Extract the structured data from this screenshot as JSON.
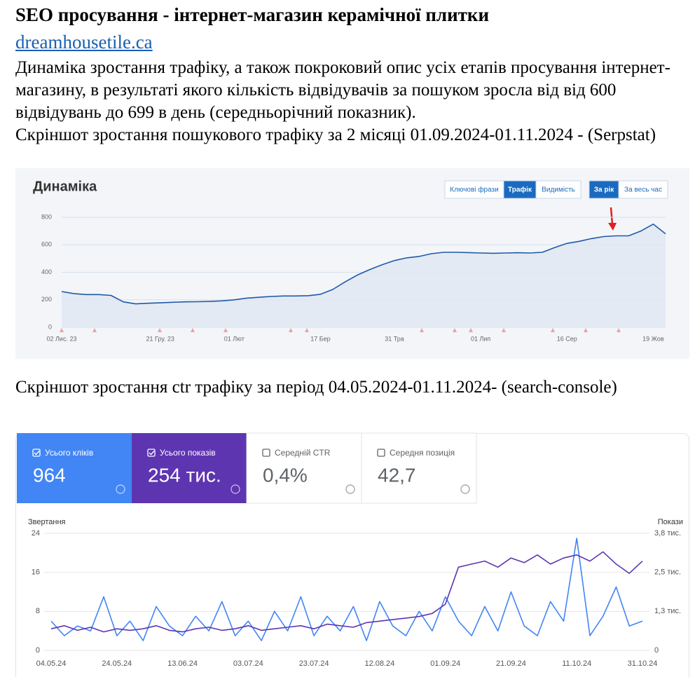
{
  "header": {
    "title": "SEO просування - інтернет-магазин керамічної плитки",
    "link": "dreamhousetile.ca"
  },
  "paragraphs": [
    "Динаміка зростання трафіку, а також покроковий опис усіх етапів просування інтернет-магазину, в результаті якого кількість відвідувачів за пошуком зросла від від 600 відвідувань до 699 в день (середньорічний показник).",
    "Скріншот зростання пошукового трафіку за 2 місяці 01.09.2024-01.11.2024 - (Serpstat)",
    "Скріншот зростання ctr трафіку за період 04.05.2024-01.11.2024- (search-console)"
  ],
  "chart_data": [
    {
      "type": "line",
      "title": "Динаміка",
      "buttons": [
        {
          "label": "Ключові фрази",
          "active": false
        },
        {
          "label": "Трафік",
          "active": true
        },
        {
          "label": "Видимість",
          "active": false
        },
        {
          "label": "За рік",
          "active": true
        },
        {
          "label": "За весь час",
          "active": false
        }
      ],
      "categories": [
        "02 Лис. 23",
        null,
        null,
        null,
        null,
        null,
        null,
        null,
        "21 Гру. 23",
        null,
        null,
        null,
        null,
        null,
        "01 Лют",
        null,
        null,
        null,
        null,
        null,
        null,
        "17 Бер",
        null,
        null,
        null,
        null,
        null,
        "31 Тра",
        null,
        null,
        null,
        null,
        null,
        null,
        "01 Лип",
        null,
        null,
        null,
        null,
        null,
        null,
        "16 Сер",
        null,
        null,
        null,
        null,
        null,
        null,
        "19 Жов",
        null
      ],
      "values": [
        260,
        245,
        238,
        238,
        232,
        185,
        170,
        175,
        178,
        182,
        185,
        186,
        188,
        192,
        200,
        212,
        218,
        224,
        228,
        228,
        230,
        240,
        275,
        330,
        380,
        420,
        455,
        485,
        505,
        515,
        535,
        545,
        545,
        543,
        540,
        538,
        540,
        542,
        540,
        545,
        580,
        610,
        625,
        645,
        660,
        665,
        665,
        700,
        750,
        680
      ],
      "color": "#1f5aa6",
      "ylim": [
        0,
        800
      ],
      "yticks": [
        0,
        200,
        400,
        600,
        800
      ],
      "grid": true
    },
    {
      "type": "line",
      "cards": [
        {
          "label": "Усього кліків",
          "value": "964",
          "checked": true,
          "color": "#4285f4"
        },
        {
          "label": "Усього показів",
          "value": "254 тис.",
          "checked": true,
          "color": "#5e35b1"
        },
        {
          "label": "Середній CTR",
          "value": "0,4%",
          "checked": false,
          "color": "#ffffff"
        },
        {
          "label": "Середня позиція",
          "value": "42,7",
          "checked": false,
          "color": "#ffffff"
        }
      ],
      "y_label": "Звертання",
      "y2_label": "Покази",
      "categories": [
        "04.05.24",
        null,
        null,
        null,
        null,
        "24.05.24",
        null,
        null,
        null,
        null,
        "13.06.24",
        null,
        null,
        null,
        null,
        "03.07.24",
        null,
        null,
        null,
        null,
        "23.07.24",
        null,
        null,
        null,
        null,
        "12.08.24",
        null,
        null,
        null,
        null,
        "01.09.24",
        null,
        null,
        null,
        null,
        "21.09.24",
        null,
        null,
        null,
        null,
        "11.10.24",
        null,
        null,
        null,
        null,
        "31.10.24"
      ],
      "series": [
        {
          "color": "#4285f4",
          "values": [
            6,
            3,
            5,
            4,
            11,
            3,
            6,
            2,
            9,
            5,
            3,
            7,
            4,
            10,
            3,
            6,
            2,
            8,
            4,
            11,
            3,
            7,
            4,
            9,
            2,
            10,
            5,
            3,
            8,
            4,
            11,
            6,
            3,
            9,
            4,
            12,
            5,
            3,
            10,
            6,
            23,
            3,
            7,
            13,
            5,
            6
          ]
        },
        {
          "color": "#5e35b1",
          "axis": "y2",
          "values": [
            700,
            800,
            650,
            750,
            600,
            700,
            650,
            700,
            800,
            650,
            600,
            700,
            750,
            650,
            700,
            800,
            650,
            700,
            750,
            800,
            700,
            850,
            800,
            750,
            900,
            950,
            1000,
            1050,
            1100,
            1200,
            1500,
            2700,
            2800,
            2900,
            2700,
            3000,
            2850,
            3100,
            2800,
            3000,
            3100,
            2900,
            3200,
            2800,
            2500,
            2900
          ]
        }
      ],
      "ylim": [
        0,
        24
      ],
      "yticks": [
        0,
        8,
        16,
        24
      ],
      "y2lim": [
        0,
        3800
      ],
      "y2ticks": [
        0,
        {
          "value": 1267,
          "label": "1,3 тис."
        },
        {
          "value": 2533,
          "label": "2,5 тис."
        },
        {
          "value": 3800,
          "label": "3,8 тис."
        }
      ],
      "grid": true
    }
  ]
}
